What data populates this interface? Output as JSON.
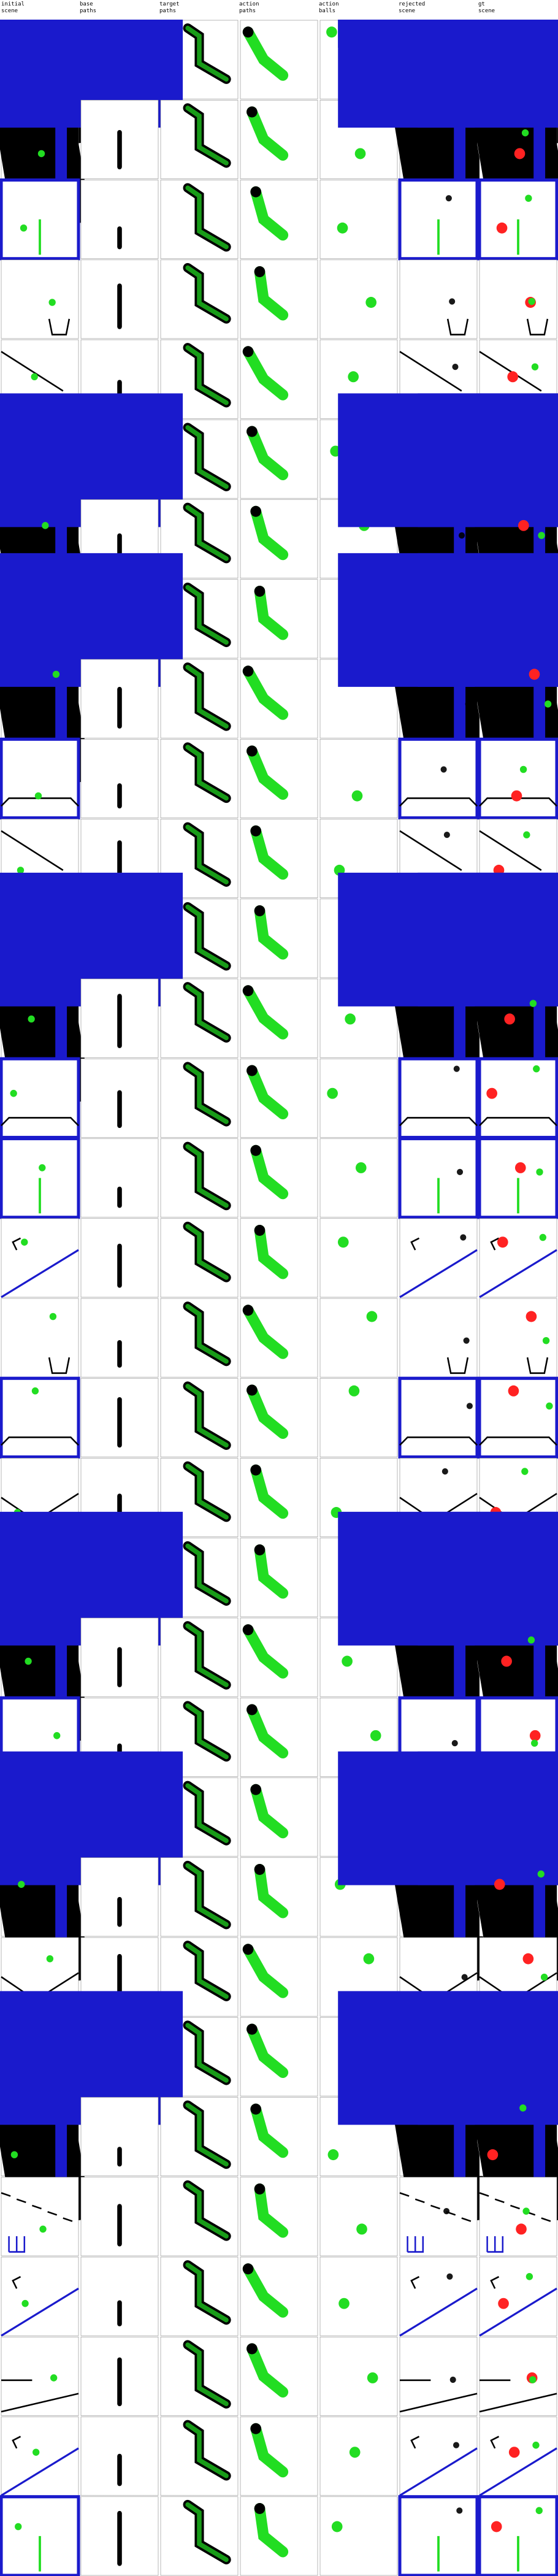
{
  "columns": [
    {
      "key": "initial_scene",
      "label": "initial\nscene"
    },
    {
      "key": "base_paths",
      "label": "base\npaths"
    },
    {
      "key": "target_paths",
      "label": "target\npaths"
    },
    {
      "key": "action_paths",
      "label": "action\npaths"
    },
    {
      "key": "action_balls",
      "label": "action\nballs"
    },
    {
      "key": "rejected_scene",
      "label": "rejected\nscene"
    },
    {
      "key": "gt_scene",
      "label": "gt\nscene"
    }
  ],
  "row_count": 32,
  "colors": {
    "green": "#22dd22",
    "red": "#ff2222",
    "blue": "#1a1acc",
    "black": "#000000",
    "heat": "#ff4444",
    "border": "#888888"
  }
}
